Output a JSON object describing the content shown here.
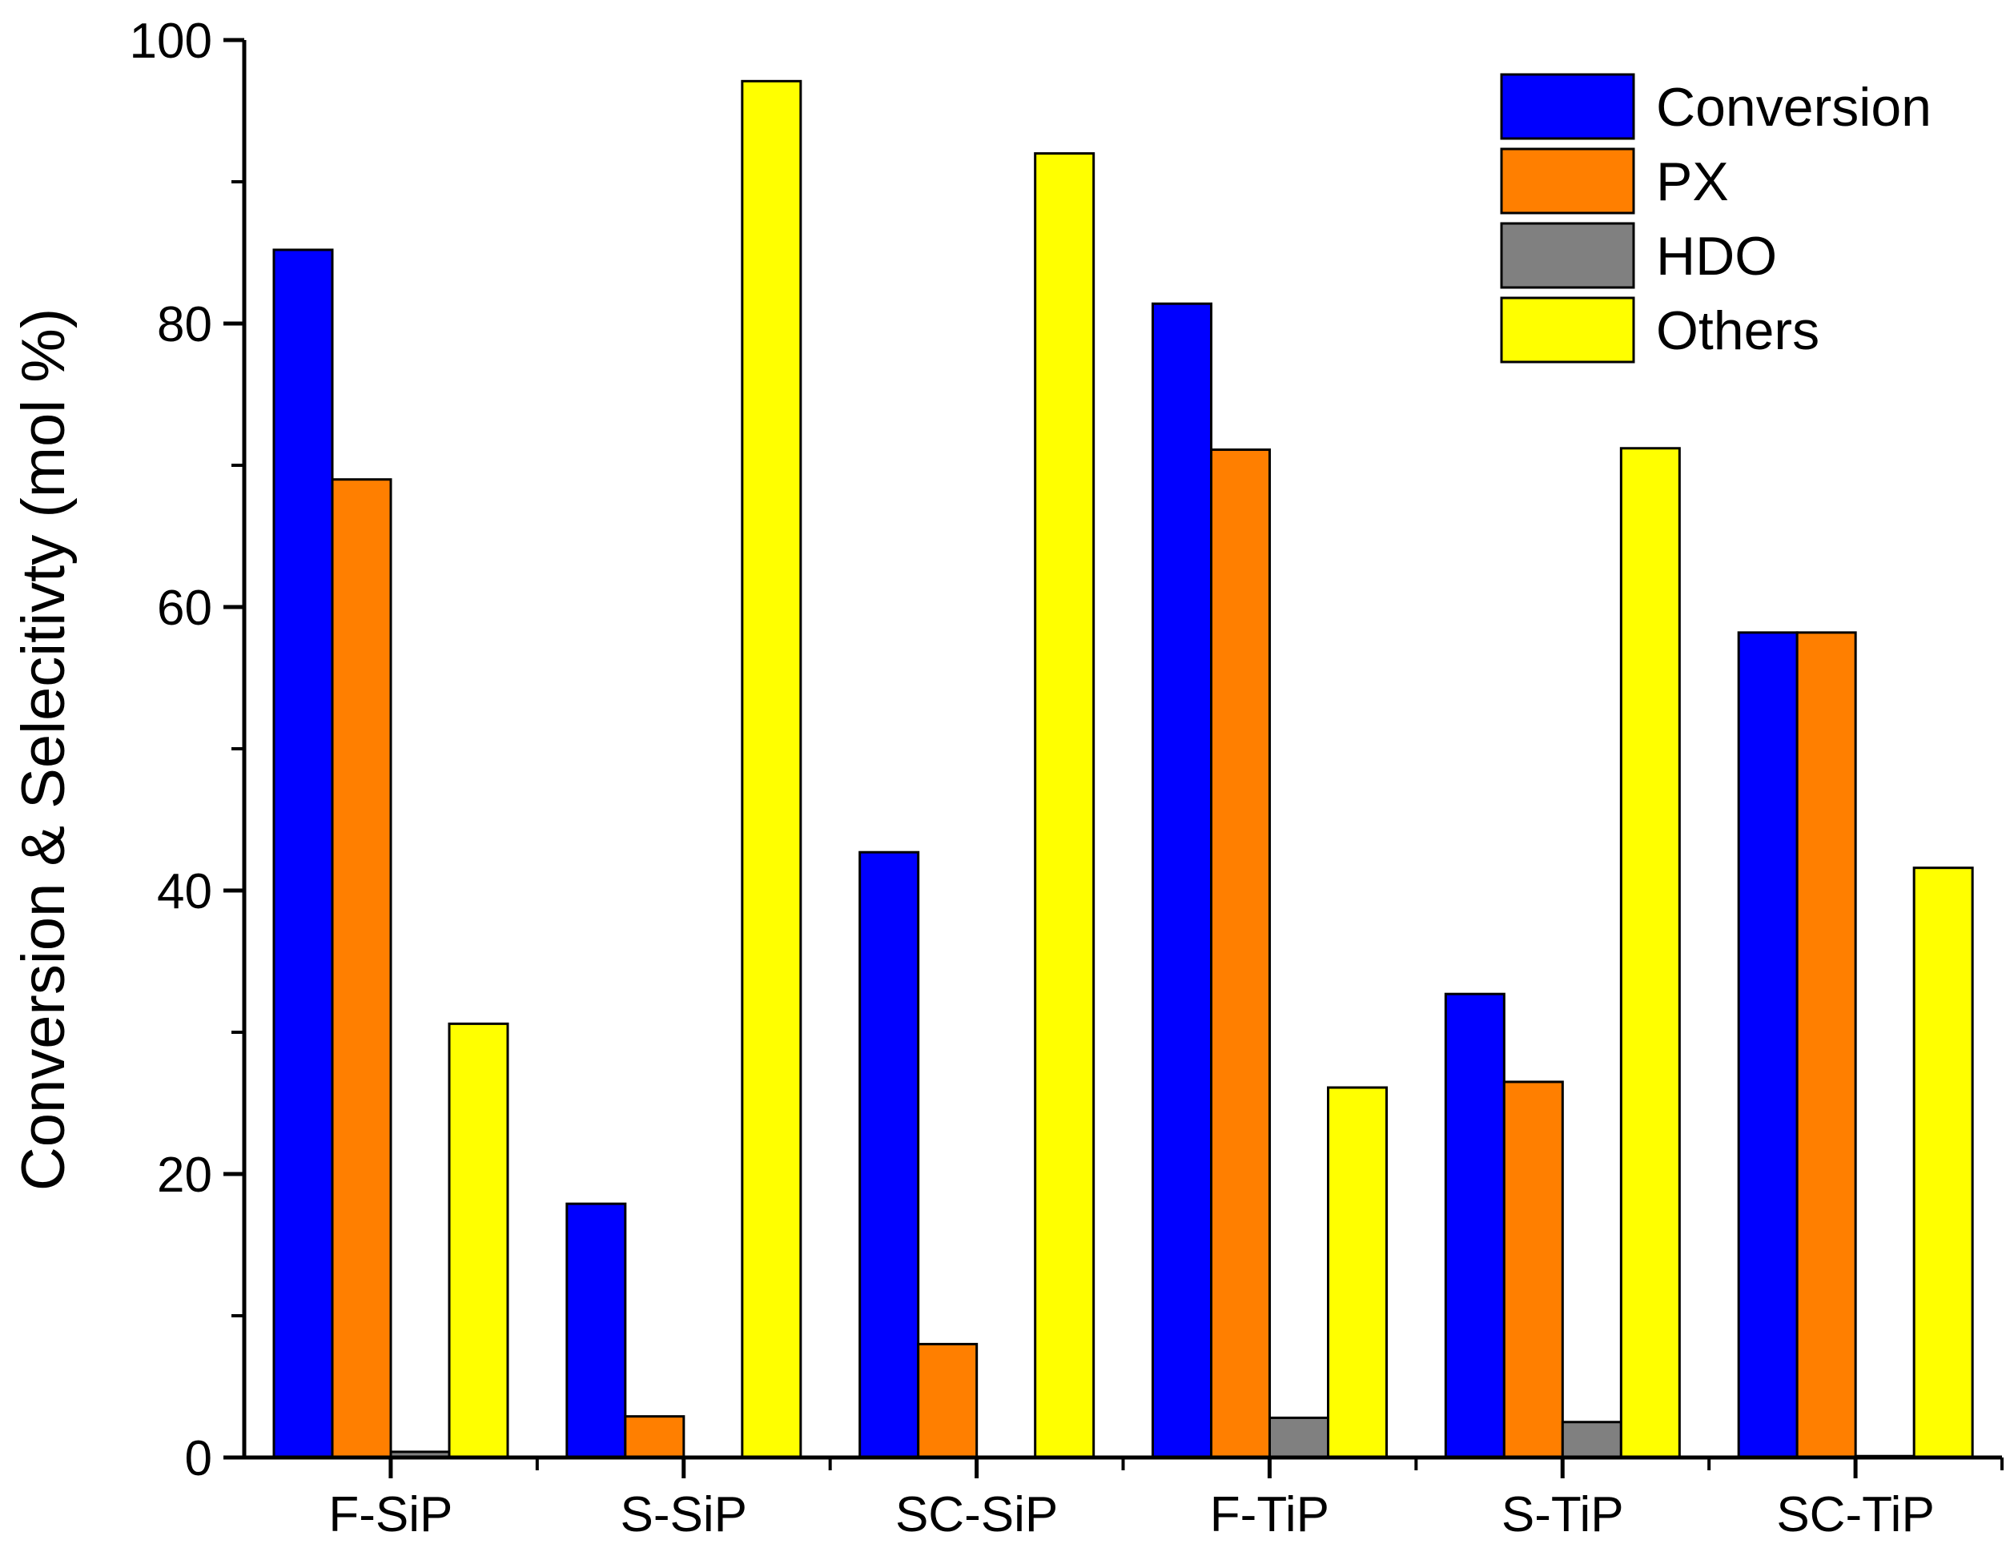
{
  "chart_data": {
    "type": "bar",
    "title": "",
    "xlabel": "",
    "ylabel": "Conversion & Selecitivty (mol %)",
    "ylim": [
      0,
      100
    ],
    "y_major_ticks": [
      0,
      20,
      40,
      60,
      80,
      100
    ],
    "y_minor_ticks": [
      10,
      30,
      50,
      70,
      90
    ],
    "y_tick_labels": [
      "0",
      "20",
      "40",
      "60",
      "80",
      "100"
    ],
    "grid": false,
    "legend_position": "top-right",
    "categories": [
      "F-SiP",
      "S-SiP",
      "SC-SiP",
      "F-TiP",
      "S-TiP",
      "SC-TiP"
    ],
    "series": [
      {
        "name": "Conversion",
        "color": "#0000FF",
        "values": [
          85.2,
          17.9,
          42.7,
          81.4,
          32.7,
          58.2
        ]
      },
      {
        "name": "PX",
        "color": "#FF7F00",
        "values": [
          69.0,
          2.9,
          8.0,
          71.1,
          26.5,
          58.2
        ]
      },
      {
        "name": "HDO",
        "color": "#808080",
        "values": [
          0.4,
          0.0,
          0.0,
          2.8,
          2.5,
          0.1
        ]
      },
      {
        "name": "Others",
        "color": "#FFFF00",
        "values": [
          30.6,
          97.1,
          92.0,
          26.1,
          71.2,
          41.6
        ]
      }
    ]
  }
}
